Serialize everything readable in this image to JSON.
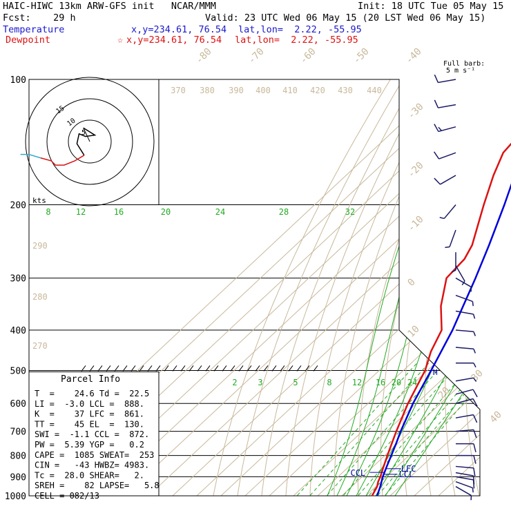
{
  "header": {
    "title": "HAIC-HIWC 13km ARW-GFS init   NCAR/MMM",
    "init": "Init: 18 UTC Tue 05 May 15",
    "fcst": "Fcst:    29 h",
    "valid": "Valid: 23 UTC Wed 06 May 15 (20 LST Wed 06 May 15)",
    "temp_label": "Temperature",
    "temp_xy": "x,y=234.61, 76.54",
    "temp_latlon": "lat,lon=  2.22, -55.95",
    "dew_label": "Dewpoint",
    "dew_star": "☆",
    "dew_xy": "x,y=234.61, 76.54",
    "dew_latlon": "lat,lon=  2.22, -55.95"
  },
  "barb_legend": {
    "line1": "Full barb:",
    "line2": "5 m s⁻¹"
  },
  "parcel_info": {
    "title": "Parcel Info",
    "rows": [
      "T  =    24.6 Td =  22.5",
      "LI =  -3.0 LCL =  888.",
      "K  =    37 LFC =  861.",
      "TT =    45 EL  =  130.",
      "SWI =  -1.1 CCL =  872.",
      "PW =  5.39 YGP =   0.2",
      "CAPE =  1085 SWEAT=  253",
      "CIN =   -43 HWBZ= 4983.",
      "Tc =  28.0 SHEAR=   2.",
      "SREH =    82 LAPSE=   5.8",
      "CELL = 082/13"
    ]
  },
  "hodograph": {
    "units": "kts",
    "ring_labels": [
      "5",
      "10",
      "15"
    ],
    "path_uv": [
      [
        -1.5,
        3.2
      ],
      [
        1.2,
        1.5
      ],
      [
        -1.0,
        1.2
      ],
      [
        -2.5,
        1.8
      ],
      [
        -3.0,
        -0.5
      ],
      [
        -1.3,
        -3.2
      ],
      [
        -3.5,
        -4.5
      ],
      [
        -6.0,
        -5.5
      ],
      [
        -8.0,
        -5.5
      ],
      [
        -9.0,
        -4.5
      ],
      [
        -11.5,
        -3.8
      ],
      [
        -14.2,
        -3.0
      ],
      [
        -16.2,
        -3.0
      ]
    ],
    "path_colors": [
      "#000000",
      "#dd1111",
      "#33aacc"
    ]
  },
  "chart_data": {
    "type": "skew-T log-P sounding",
    "y_axis": {
      "label": "Pressure (hPa)",
      "scale": "log",
      "range": [
        1000,
        100
      ],
      "ticks": [
        100,
        200,
        300,
        400,
        500,
        600,
        700,
        800,
        900,
        1000
      ],
      "tick_labels": [
        "100",
        "200",
        "300",
        "400",
        "500",
        "600",
        "700",
        "800",
        "900",
        "1000"
      ]
    },
    "isotherm_labels": [
      "-80",
      "-70",
      "-60",
      "-50",
      "-40",
      "-30",
      "-20",
      "-10",
      "0",
      "10",
      "20",
      "30",
      "40"
    ],
    "theta_labels_top": [
      "370",
      "380",
      "390",
      "400",
      "410",
      "420",
      "430",
      "440"
    ],
    "theta_labels_side": [
      "290",
      "280",
      "270"
    ],
    "mixing_ratio_labels_upper": [
      "8",
      "12",
      "16",
      "20",
      "24",
      "28",
      "32"
    ],
    "mixing_ratio_labels_lower": [
      "2",
      "3",
      "5",
      "8",
      "12",
      "16",
      "20",
      "24"
    ],
    "temperature": {
      "color": "#0000dd",
      "points": [
        [
          1000,
          24.6
        ],
        [
          950,
          21.8
        ],
        [
          925,
          20.2
        ],
        [
          900,
          18.5
        ],
        [
          850,
          15.6
        ],
        [
          800,
          12.6
        ],
        [
          750,
          9.4
        ],
        [
          700,
          5.8
        ],
        [
          600,
          -1.4
        ],
        [
          500,
          -8.5
        ],
        [
          400,
          -17.5
        ],
        [
          300,
          -31.0
        ],
        [
          250,
          -40.0
        ],
        [
          200,
          -51.5
        ],
        [
          150,
          -67.0
        ],
        [
          130,
          -76.0
        ],
        [
          115,
          -76.0
        ],
        [
          100,
          -72.0
        ]
      ]
    },
    "dewpoint": {
      "color": "#dd1111",
      "points": [
        [
          1000,
          22.5
        ],
        [
          950,
          20.5
        ],
        [
          925,
          18.8
        ],
        [
          900,
          17.5
        ],
        [
          850,
          14.3
        ],
        [
          800,
          11.0
        ],
        [
          750,
          7.6
        ],
        [
          700,
          4.0
        ],
        [
          600,
          -3.5
        ],
        [
          500,
          -11.0
        ],
        [
          450,
          -17.0
        ],
        [
          400,
          -22.0
        ],
        [
          350,
          -33.0
        ],
        [
          300,
          -43.0
        ],
        [
          270,
          -44.0
        ],
        [
          250,
          -47.0
        ],
        [
          200,
          -60.0
        ],
        [
          170,
          -69.0
        ],
        [
          150,
          -75.0
        ],
        [
          120,
          -78.0
        ],
        [
          100,
          -77.0
        ]
      ]
    },
    "levels": [
      {
        "name": "EL",
        "pressure": 130
      },
      {
        "name": "LFC",
        "pressure": 861
      },
      {
        "name": "LCL",
        "pressure": 888
      },
      {
        "name": "CCL",
        "pressure": 872
      },
      {
        "name": "M",
        "pressure": 505
      }
    ],
    "wind_barbs": {
      "color": "#1a1a66",
      "samples": [
        {
          "p": 100,
          "dir": 260,
          "spd": 10
        },
        {
          "p": 115,
          "dir": 260,
          "spd": 12
        },
        {
          "p": 130,
          "dir": 255,
          "spd": 15
        },
        {
          "p": 150,
          "dir": 250,
          "spd": 12
        },
        {
          "p": 170,
          "dir": 240,
          "spd": 8
        },
        {
          "p": 200,
          "dir": 220,
          "spd": 5
        },
        {
          "p": 230,
          "dir": 200,
          "spd": 4
        },
        {
          "p": 260,
          "dir": 180,
          "spd": 3
        },
        {
          "p": 280,
          "dir": 150,
          "spd": 3
        },
        {
          "p": 300,
          "dir": 120,
          "spd": 4
        },
        {
          "p": 330,
          "dir": 110,
          "spd": 5
        },
        {
          "p": 360,
          "dir": 100,
          "spd": 5
        },
        {
          "p": 400,
          "dir": 95,
          "spd": 6
        },
        {
          "p": 440,
          "dir": 95,
          "spd": 5
        },
        {
          "p": 480,
          "dir": 90,
          "spd": 6
        },
        {
          "p": 530,
          "dir": 80,
          "spd": 7
        },
        {
          "p": 570,
          "dir": 75,
          "spd": 8
        },
        {
          "p": 600,
          "dir": 75,
          "spd": 9
        },
        {
          "p": 650,
          "dir": 80,
          "spd": 10
        },
        {
          "p": 700,
          "dir": 85,
          "spd": 10
        },
        {
          "p": 750,
          "dir": 90,
          "spd": 10
        },
        {
          "p": 800,
          "dir": 90,
          "spd": 9
        },
        {
          "p": 850,
          "dir": 95,
          "spd": 9
        },
        {
          "p": 880,
          "dir": 100,
          "spd": 8
        },
        {
          "p": 900,
          "dir": 100,
          "spd": 8
        },
        {
          "p": 925,
          "dir": 110,
          "spd": 6
        },
        {
          "p": 950,
          "dir": 120,
          "spd": 5
        }
      ]
    }
  }
}
